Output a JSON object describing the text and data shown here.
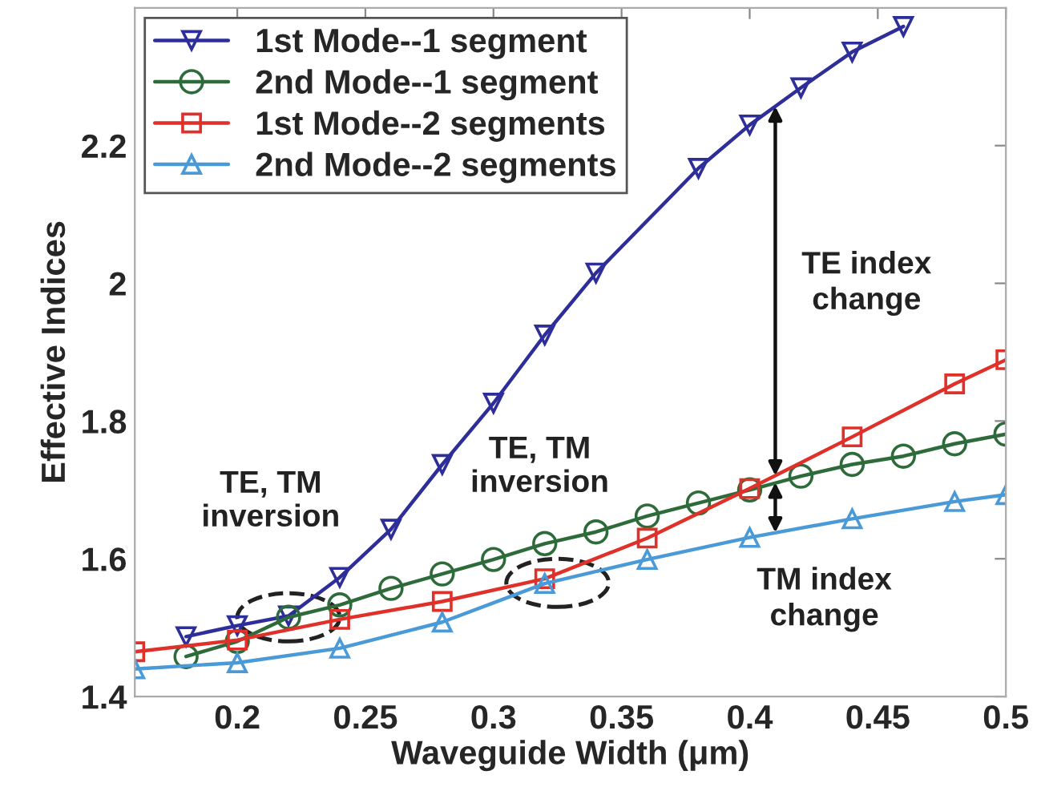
{
  "chart_data": {
    "type": "line",
    "xlabel": "Waveguide Width (μm)",
    "ylabel": "Effective Indices",
    "xlim": [
      0.16,
      0.5
    ],
    "xticks": [
      0.2,
      0.25,
      0.3,
      0.35,
      0.4,
      0.45,
      0.5
    ],
    "ylim": [
      1.4,
      2.4
    ],
    "yticks": [
      1.4,
      1.6,
      1.8,
      2,
      2.2
    ],
    "grid": false,
    "legend": "top left",
    "series": [
      {
        "name": "1st Mode--1 segment",
        "color": "#2e2e9a",
        "marker": "triangle_down",
        "x": [
          0.18,
          0.2,
          0.22,
          0.24,
          0.26,
          0.28,
          0.3,
          0.32,
          0.34,
          0.38,
          0.4,
          0.42,
          0.44,
          0.46
        ],
        "values": [
          1.487,
          1.503,
          1.517,
          1.573,
          1.643,
          1.737,
          1.826,
          1.925,
          2.015,
          2.167,
          2.23,
          2.284,
          2.336,
          2.373
        ]
      },
      {
        "name": "2nd Mode--1 segment",
        "color": "#2e6b3a",
        "marker": "circle",
        "x": [
          0.18,
          0.2,
          0.22,
          0.24,
          0.26,
          0.28,
          0.3,
          0.32,
          0.34,
          0.36,
          0.38,
          0.4,
          0.42,
          0.44,
          0.46,
          0.48,
          0.5
        ],
        "values": [
          1.458,
          1.48,
          1.515,
          1.533,
          1.557,
          1.578,
          1.599,
          1.622,
          1.639,
          1.662,
          1.681,
          1.7,
          1.72,
          1.737,
          1.749,
          1.767,
          1.781
        ]
      },
      {
        "name": "1st Mode--2 segments",
        "color": "#e0302a",
        "marker": "square",
        "x": [
          0.16,
          0.2,
          0.24,
          0.28,
          0.32,
          0.36,
          0.4,
          0.44,
          0.48,
          0.5
        ],
        "values": [
          1.465,
          1.482,
          1.512,
          1.538,
          1.571,
          1.63,
          1.702,
          1.777,
          1.854,
          1.889
        ]
      },
      {
        "name": "2nd Mode--2 segments",
        "color": "#4a9ad8",
        "marker": "triangle",
        "x": [
          0.16,
          0.2,
          0.24,
          0.28,
          0.32,
          0.36,
          0.4,
          0.44,
          0.48,
          0.5
        ],
        "values": [
          1.44,
          1.449,
          1.47,
          1.508,
          1.564,
          1.599,
          1.631,
          1.658,
          1.683,
          1.693
        ]
      }
    ],
    "annotations": [
      {
        "text": "TE, TM\ninversion",
        "x": 0.22,
        "y": 1.515
      },
      {
        "text": "TE, TM\ninversion",
        "x": 0.325,
        "y": 1.565
      },
      "TE index\nchange",
      {
        "text": "TM index\nchange",
        "x": 0.41,
        "y": 1.638
      }
    ]
  }
}
